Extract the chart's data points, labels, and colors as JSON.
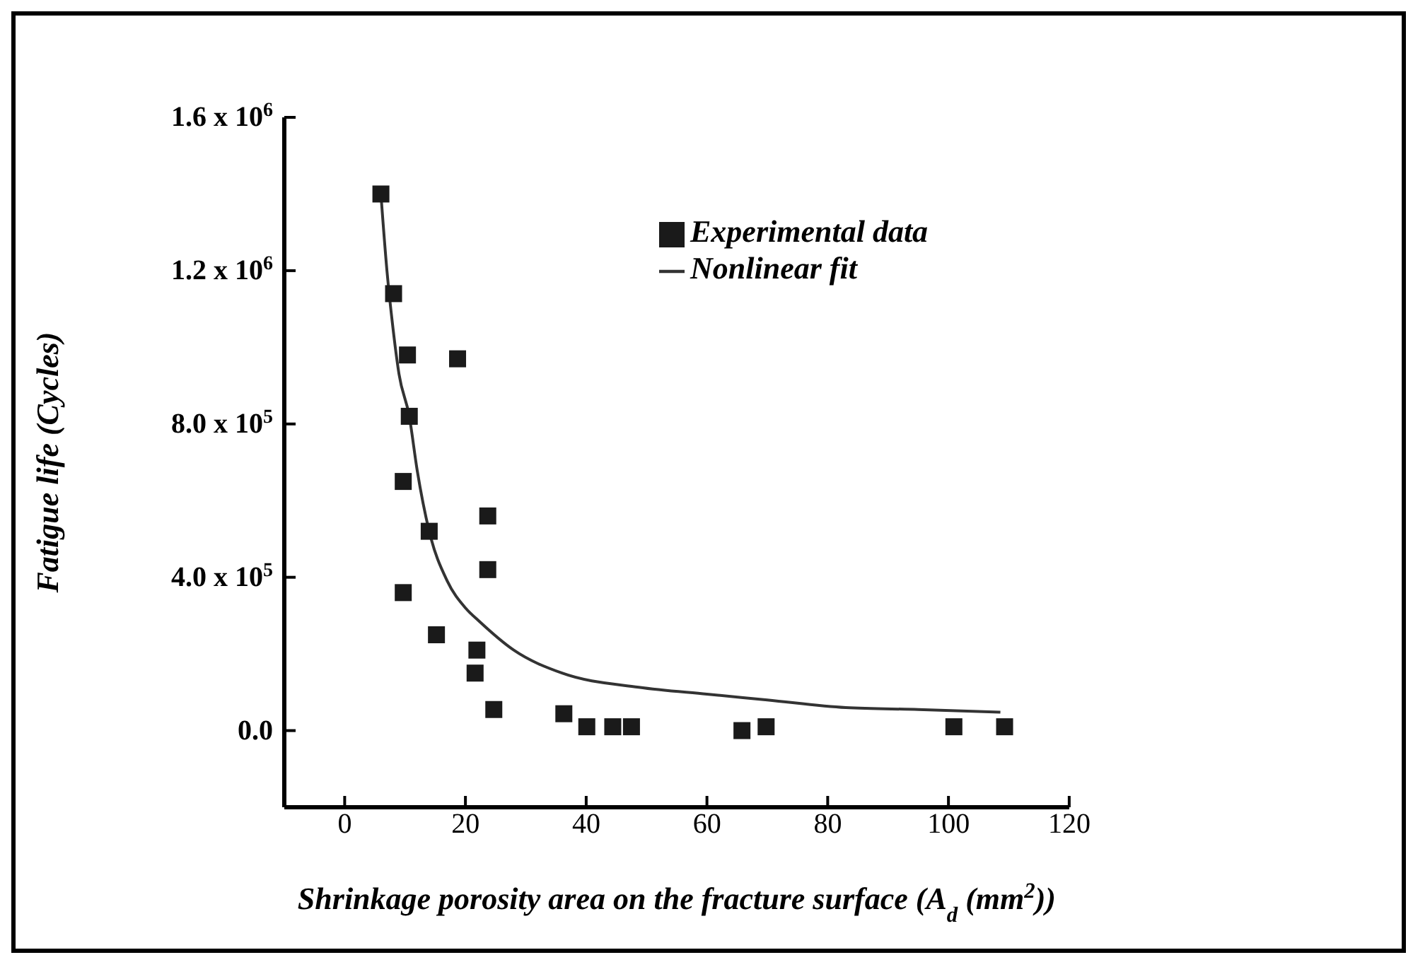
{
  "chart_data": {
    "type": "scatter",
    "xlabel": "Shrinkage porosity area on the fracture surface (A$_{d}$ (mm$^{2}$))",
    "ylabel": "Fatigue life (Cycles)",
    "xlim": [
      -10,
      120
    ],
    "xticks": [
      0,
      20,
      40,
      60,
      80,
      100,
      120
    ],
    "ylim": [
      -200000,
      1600000
    ],
    "yticks": [
      {
        "value": 0,
        "label": "0.0"
      },
      {
        "value": 400000,
        "label": "4.0 x 10$^{5}$"
      },
      {
        "value": 800000,
        "label": "8.0 x 10$^{5}$"
      },
      {
        "value": 1200000,
        "label": "1.2 x 10$^{6}$"
      },
      {
        "value": 1600000,
        "label": "1.6 x 10$^{6}$"
      }
    ],
    "grid": false,
    "legend": "top right",
    "series": [
      {
        "name": "Experimental data",
        "marker": "square",
        "color": "#1a1a1a",
        "x": [
          6.0,
          8.1,
          10.4,
          18.7,
          10.7,
          9.7,
          14.0,
          23.7,
          23.7,
          9.7,
          15.2,
          21.9,
          21.6,
          24.7,
          36.3,
          40.1,
          44.4,
          47.5,
          65.8,
          69.8,
          100.9,
          109.3
        ],
        "values": [
          1400000,
          1140000,
          980000,
          970000,
          820000,
          650000,
          520000,
          560000,
          420000,
          360000,
          250000,
          210000,
          150000,
          55000,
          44000,
          10000,
          10000,
          10000,
          0,
          10000,
          10000,
          10000
        ]
      },
      {
        "name": "Nonlinear fit",
        "type": "line",
        "marker": "none",
        "line_style": "solid",
        "color": "#333333",
        "x": [
          6,
          7,
          8,
          9,
          10.7,
          12,
          14,
          17,
          20,
          22.3,
          28,
          36,
          48.7,
          60,
          70,
          83,
          95,
          108.6
        ],
        "values": [
          1400000,
          1200000,
          1050000,
          930000,
          820000,
          680000,
          520000,
          390000,
          320000,
          285000,
          210000,
          150000,
          113000,
          95000,
          80000,
          60000,
          55000,
          48000
        ]
      }
    ]
  }
}
